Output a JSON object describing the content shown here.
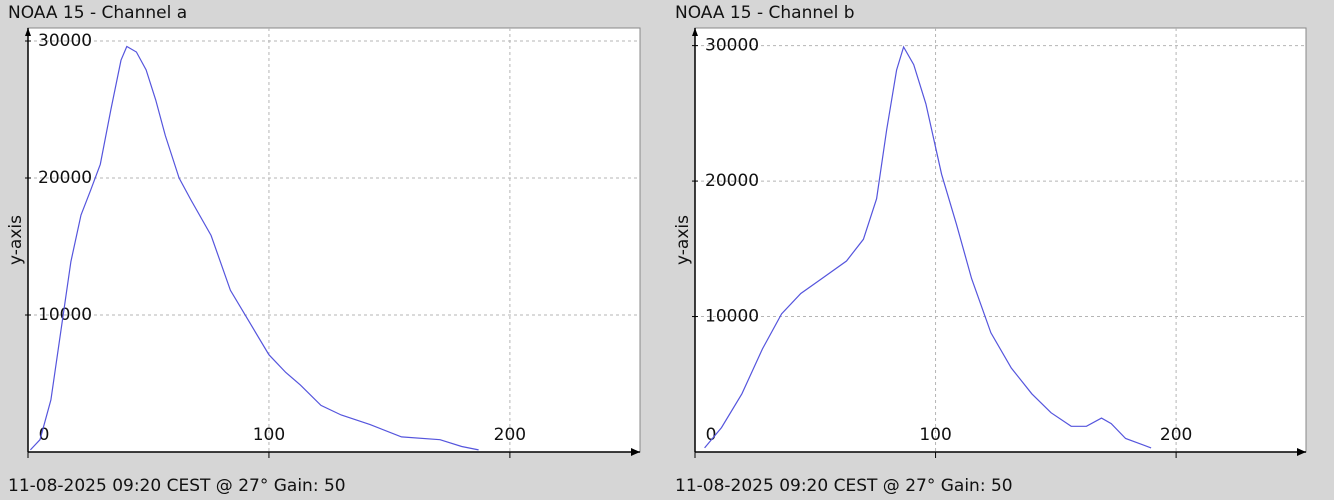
{
  "chart_data": [
    {
      "type": "line",
      "title": "NOAA 15 - Channel a",
      "y_label": "y-axis",
      "footer": "11-08-2025 09:20 CEST @ 27° Gain: 50",
      "color": "#5555dd",
      "grid": true,
      "xlim": [
        0,
        254
      ],
      "ylim": [
        0,
        30950
      ],
      "xticks": [
        0,
        100,
        200
      ],
      "yticks": [
        10000,
        20000,
        30000
      ],
      "x": [
        1,
        5,
        9.5,
        13.7,
        17.8,
        22,
        26,
        30,
        34.4,
        38.6,
        41,
        45,
        49,
        53,
        57,
        62.7,
        67.6,
        76,
        84,
        92.5,
        100,
        107,
        113,
        121.6,
        130,
        142,
        155,
        171,
        180,
        187
      ],
      "values": [
        150,
        900,
        3800,
        8900,
        13900,
        17300,
        19100,
        21000,
        25000,
        28600,
        29600,
        29200,
        27900,
        25700,
        23100,
        20000,
        18400,
        15800,
        11800,
        9300,
        7100,
        5800,
        4900,
        3400,
        2700,
        2000,
        1100,
        900,
        400,
        150
      ]
    },
    {
      "type": "line",
      "title": "NOAA 15 - Channel b",
      "y_label": "y-axis",
      "footer": "11-08-2025 09:20 CEST @ 27° Gain: 50",
      "color": "#5555dd",
      "grid": true,
      "xlim": [
        0,
        254
      ],
      "ylim": [
        0,
        31300
      ],
      "xticks": [
        0,
        100,
        200
      ],
      "yticks": [
        10000,
        20000,
        30000
      ],
      "x": [
        4,
        11,
        19.5,
        28,
        36,
        44,
        52.7,
        63,
        70,
        75.5,
        79.7,
        83.8,
        86.7,
        90.9,
        96,
        102.5,
        108.7,
        115,
        123,
        131.5,
        140,
        148,
        156.4,
        162.7,
        169,
        173,
        179,
        189.6
      ],
      "values": [
        300,
        1800,
        4300,
        7600,
        10200,
        11700,
        12800,
        14100,
        15700,
        18700,
        23800,
        28200,
        29900,
        28600,
        25700,
        20500,
        16800,
        12800,
        8800,
        6200,
        4300,
        2900,
        1900,
        1900,
        2500,
        2100,
        1000,
        300
      ]
    }
  ]
}
